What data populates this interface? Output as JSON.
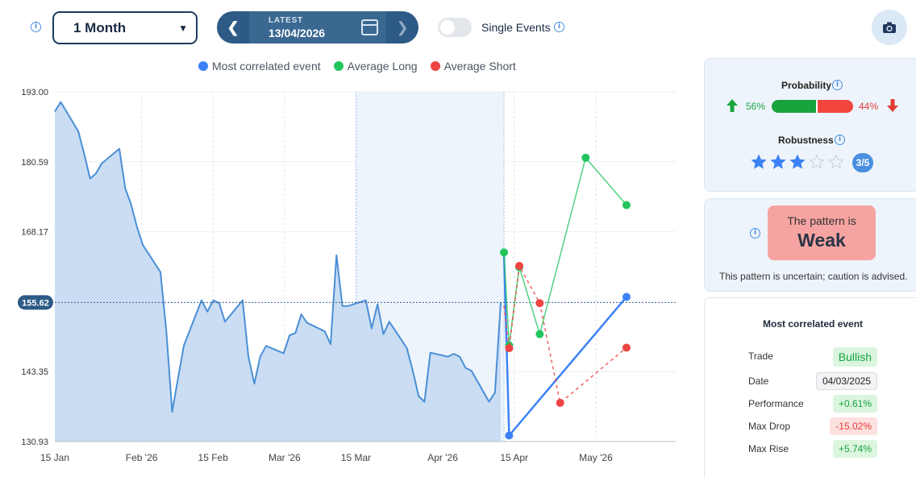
{
  "toolbar": {
    "period": "1 Month",
    "date_label": "LATEST",
    "date": "13/04/2026",
    "single_events_label": "Single Events"
  },
  "legend": [
    {
      "label": "Most correlated event",
      "color": "#3b82f6"
    },
    {
      "label": "Average Long",
      "color": "#22c55e"
    },
    {
      "label": "Average Short",
      "color": "#ef4444"
    }
  ],
  "chart_data": {
    "type": "area",
    "yticks": [
      "193.00",
      "180.59",
      "168.17",
      "143.35",
      "130.93"
    ],
    "current_value_label": "155.62",
    "current_value": 155.62,
    "xticks": [
      "15 Jan",
      "Feb '26",
      "15 Feb",
      "Mar '26",
      "15 Mar",
      "Apr '26",
      "15 Apr",
      "May '26"
    ],
    "ylim": [
      130.93,
      193.0
    ],
    "price_series": [
      [
        "2026-01-15",
        189.5
      ],
      [
        "2026-01-16",
        191.2
      ],
      [
        "2026-01-19",
        186.0
      ],
      [
        "2026-01-20",
        182.0
      ],
      [
        "2026-01-21",
        177.6
      ],
      [
        "2026-01-22",
        178.5
      ],
      [
        "2026-01-23",
        180.3
      ],
      [
        "2026-01-26",
        182.9
      ],
      [
        "2026-01-27",
        175.9
      ],
      [
        "2026-01-28",
        173.0
      ],
      [
        "2026-01-29",
        169.0
      ],
      [
        "2026-01-30",
        165.8
      ],
      [
        "2026-02-02",
        161.0
      ],
      [
        "2026-02-03",
        150.5
      ],
      [
        "2026-02-04",
        136.2
      ],
      [
        "2026-02-05",
        142.2
      ],
      [
        "2026-02-06",
        148.0
      ],
      [
        "2026-02-09",
        156.0
      ],
      [
        "2026-02-10",
        154.0
      ],
      [
        "2026-02-11",
        156.0
      ],
      [
        "2026-02-12",
        155.5
      ],
      [
        "2026-02-13",
        152.2
      ],
      [
        "2026-02-16",
        156.0
      ],
      [
        "2026-02-17",
        146.0
      ],
      [
        "2026-02-18",
        141.2
      ],
      [
        "2026-02-19",
        146.0
      ],
      [
        "2026-02-20",
        147.9
      ],
      [
        "2026-02-23",
        146.6
      ],
      [
        "2026-02-24",
        149.8
      ],
      [
        "2026-02-25",
        150.2
      ],
      [
        "2026-02-26",
        153.5
      ],
      [
        "2026-02-27",
        152.0
      ],
      [
        "2026-03-02",
        150.5
      ],
      [
        "2026-03-03",
        148.2
      ],
      [
        "2026-03-04",
        164.0
      ],
      [
        "2026-03-05",
        155.0
      ],
      [
        "2026-03-06",
        155.0
      ],
      [
        "2026-03-09",
        156.0
      ],
      [
        "2026-03-10",
        151.0
      ],
      [
        "2026-03-11",
        155.3
      ],
      [
        "2026-03-12",
        150.0
      ],
      [
        "2026-03-13",
        152.2
      ],
      [
        "2026-03-16",
        147.5
      ],
      [
        "2026-03-17",
        143.5
      ],
      [
        "2026-03-18",
        139.0
      ],
      [
        "2026-03-19",
        138.0
      ],
      [
        "2026-03-20",
        146.7
      ],
      [
        "2026-03-23",
        146.0
      ],
      [
        "2026-03-24",
        146.5
      ],
      [
        "2026-03-25",
        146.0
      ],
      [
        "2026-03-26",
        144.0
      ],
      [
        "2026-03-27",
        143.5
      ],
      [
        "2026-03-30",
        138.0
      ],
      [
        "2026-03-31",
        139.6
      ],
      [
        "2026-04-01",
        155.6
      ]
    ],
    "projection_series": [
      {
        "name": "Most correlated event",
        "color": "#3b82f6",
        "points": [
          [
            "2026-04-13",
            164.5
          ],
          [
            "2026-04-14",
            132.0
          ],
          [
            "2026-05-07",
            156.6
          ]
        ]
      },
      {
        "name": "Average Long",
        "color": "#22c55e",
        "points": [
          [
            "2026-04-13",
            164.5
          ],
          [
            "2026-04-14",
            148.0
          ],
          [
            "2026-04-16",
            161.9
          ],
          [
            "2026-04-20",
            150.0
          ],
          [
            "2026-04-29",
            181.3
          ],
          [
            "2026-05-07",
            172.9
          ]
        ]
      },
      {
        "name": "Average Short",
        "color": "#ef4444",
        "points": [
          [
            "2026-04-13",
            155.0
          ],
          [
            "2026-04-14",
            147.5
          ],
          [
            "2026-04-16",
            162.1
          ],
          [
            "2026-04-20",
            155.5
          ],
          [
            "2026-04-24",
            137.8
          ],
          [
            "2026-05-07",
            147.6
          ]
        ]
      }
    ]
  },
  "probability": {
    "title": "Probability",
    "long_pct": "56%",
    "long_value": 56,
    "short_pct": "44%",
    "short_value": 44
  },
  "robustness": {
    "title": "Robustness",
    "rating": 3,
    "max": 5,
    "badge": "3/5"
  },
  "pattern": {
    "prefix": "The pattern is",
    "strength": "Weak",
    "note": "This pattern is uncertain; caution is advised."
  },
  "event": {
    "title": "Most correlated event",
    "trade_label": "Trade",
    "trade": "Bullish",
    "date_label": "Date",
    "date": "04/03/2025",
    "performance_label": "Performance",
    "performance": "+0.61%",
    "max_drop_label": "Max Drop",
    "max_drop": "-15.02%",
    "max_rise_label": "Max Rise",
    "max_rise": "+5.74%"
  }
}
